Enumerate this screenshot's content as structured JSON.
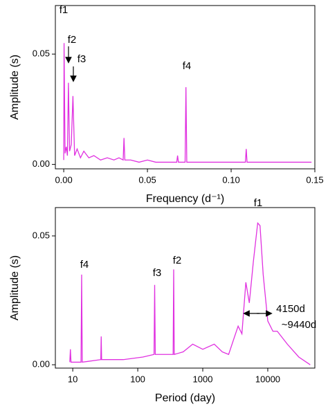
{
  "chart_data": [
    {
      "type": "line",
      "x_label": "Frequency (d⁻¹)",
      "y_label": "Amplitude (s)",
      "annotations": [
        "f1",
        "f2",
        "f3",
        "f4"
      ],
      "series": [
        {
          "color": "#e030e0",
          "x": [
            0,
            0.0002,
            0.0008,
            0.0015,
            0.0022,
            0.0028,
            0.0035,
            0.0045,
            0.0055,
            0.0065,
            0.008,
            0.01,
            0.012,
            0.015,
            0.018,
            0.022,
            0.026,
            0.03,
            0.033,
            0.0355,
            0.036,
            0.0365,
            0.04,
            0.045,
            0.05,
            0.055,
            0.06,
            0.065,
            0.0675,
            0.068,
            0.0685,
            0.0725,
            0.073,
            0.0735,
            0.08,
            0.09,
            0.1,
            0.1085,
            0.109,
            0.1095,
            0.12,
            0.13,
            0.14,
            0.148
          ],
          "values": [
            0.002,
            0.055,
            0.005,
            0.008,
            0.004,
            0.037,
            0.006,
            0.009,
            0.031,
            0.004,
            0.007,
            0.003,
            0.006,
            0.003,
            0.004,
            0.002,
            0.003,
            0.002,
            0.003,
            0.002,
            0.012,
            0.002,
            0.002,
            0.001,
            0.002,
            0.001,
            0.001,
            0.001,
            0.001,
            0.004,
            0.001,
            0.001,
            0.035,
            0.001,
            0.001,
            0.001,
            0.001,
            0.001,
            0.007,
            0.001,
            0.001,
            0.001,
            0.001,
            0.001
          ]
        }
      ],
      "xlim": [
        -0.005,
        0.15
      ],
      "xticks": [
        {
          "value": 0,
          "label": "0.00"
        },
        {
          "value": 0.05,
          "label": "0.05"
        },
        {
          "value": 0.1,
          "label": "0.10"
        },
        {
          "value": 0.15,
          "label": "0.15"
        }
      ],
      "ylim": [
        -0.002,
        0.072
      ],
      "yticks": [
        {
          "value": 0,
          "label": "0.00"
        },
        {
          "value": 0.05,
          "label": "0.05"
        }
      ]
    },
    {
      "type": "line",
      "x_label": "Period (day)",
      "y_label": "Amplitude (s)",
      "log_x": true,
      "annotations": [
        "f4",
        "f3",
        "f2",
        "f1",
        "4150d",
        "~9440d"
      ],
      "series": [
        {
          "color": "#e030e0",
          "x": [
            9.0,
            9.2,
            9.4,
            13.4,
            13.7,
            14.0,
            27,
            27.4,
            27.8,
            60,
            120,
            178,
            182,
            186,
            300,
            350,
            357,
            364,
            500,
            700,
            1000,
            1500,
            2000,
            2500,
            3000,
            3500,
            4000,
            4600,
            5200,
            6000,
            7000,
            7600,
            8500,
            10000,
            12000,
            14000,
            20000,
            30000,
            45000
          ],
          "values": [
            0.001,
            0.006,
            0.001,
            0.001,
            0.035,
            0.001,
            0.002,
            0.011,
            0.002,
            0.002,
            0.003,
            0.004,
            0.031,
            0.004,
            0.004,
            0.004,
            0.037,
            0.004,
            0.005,
            0.008,
            0.006,
            0.008,
            0.005,
            0.004,
            0.01,
            0.015,
            0.012,
            0.032,
            0.024,
            0.04,
            0.055,
            0.054,
            0.035,
            0.017,
            0.013,
            0.013,
            0.008,
            0.003,
            0.0
          ]
        }
      ],
      "xlim": [
        5.4,
        53000
      ],
      "xticks": [
        10,
        100,
        1000,
        10000
      ],
      "ylim": [
        -0.0013,
        0.061
      ],
      "yticks": [
        {
          "value": 0,
          "label": "0.00"
        },
        {
          "value": 0.05,
          "label": "0.05"
        }
      ]
    }
  ]
}
